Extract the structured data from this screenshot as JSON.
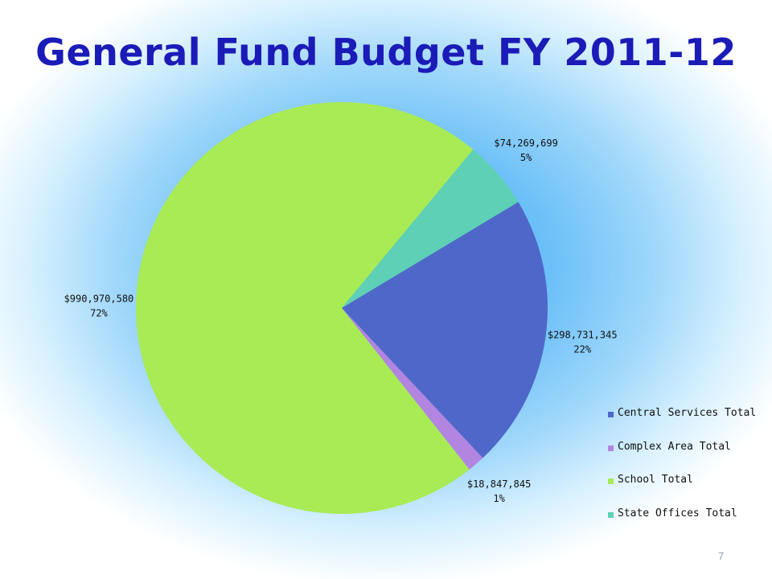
{
  "slide": {
    "title": "General Fund Budget FY 2011-12",
    "page_number": "7"
  },
  "chart_data": {
    "type": "pie",
    "title": "",
    "slices": [
      {
        "name": "Central Services Total",
        "value": 298731345,
        "value_label": "$298,731,345",
        "percent_label": "22%",
        "color": "#4f67c8"
      },
      {
        "name": "Complex Area Total",
        "value": 18847845,
        "value_label": "$18,847,845",
        "percent_label": "1%",
        "color": "#b285e0"
      },
      {
        "name": "School Total",
        "value": 990970580,
        "value_label": "$990,970,580",
        "percent_label": "72%",
        "color": "#a8eb55"
      },
      {
        "name": "State Offices Total",
        "value": 74269699,
        "value_label": "$74,269,699",
        "percent_label": "5%",
        "color": "#5ed0b5"
      }
    ],
    "legend_position": "bottom-right"
  }
}
